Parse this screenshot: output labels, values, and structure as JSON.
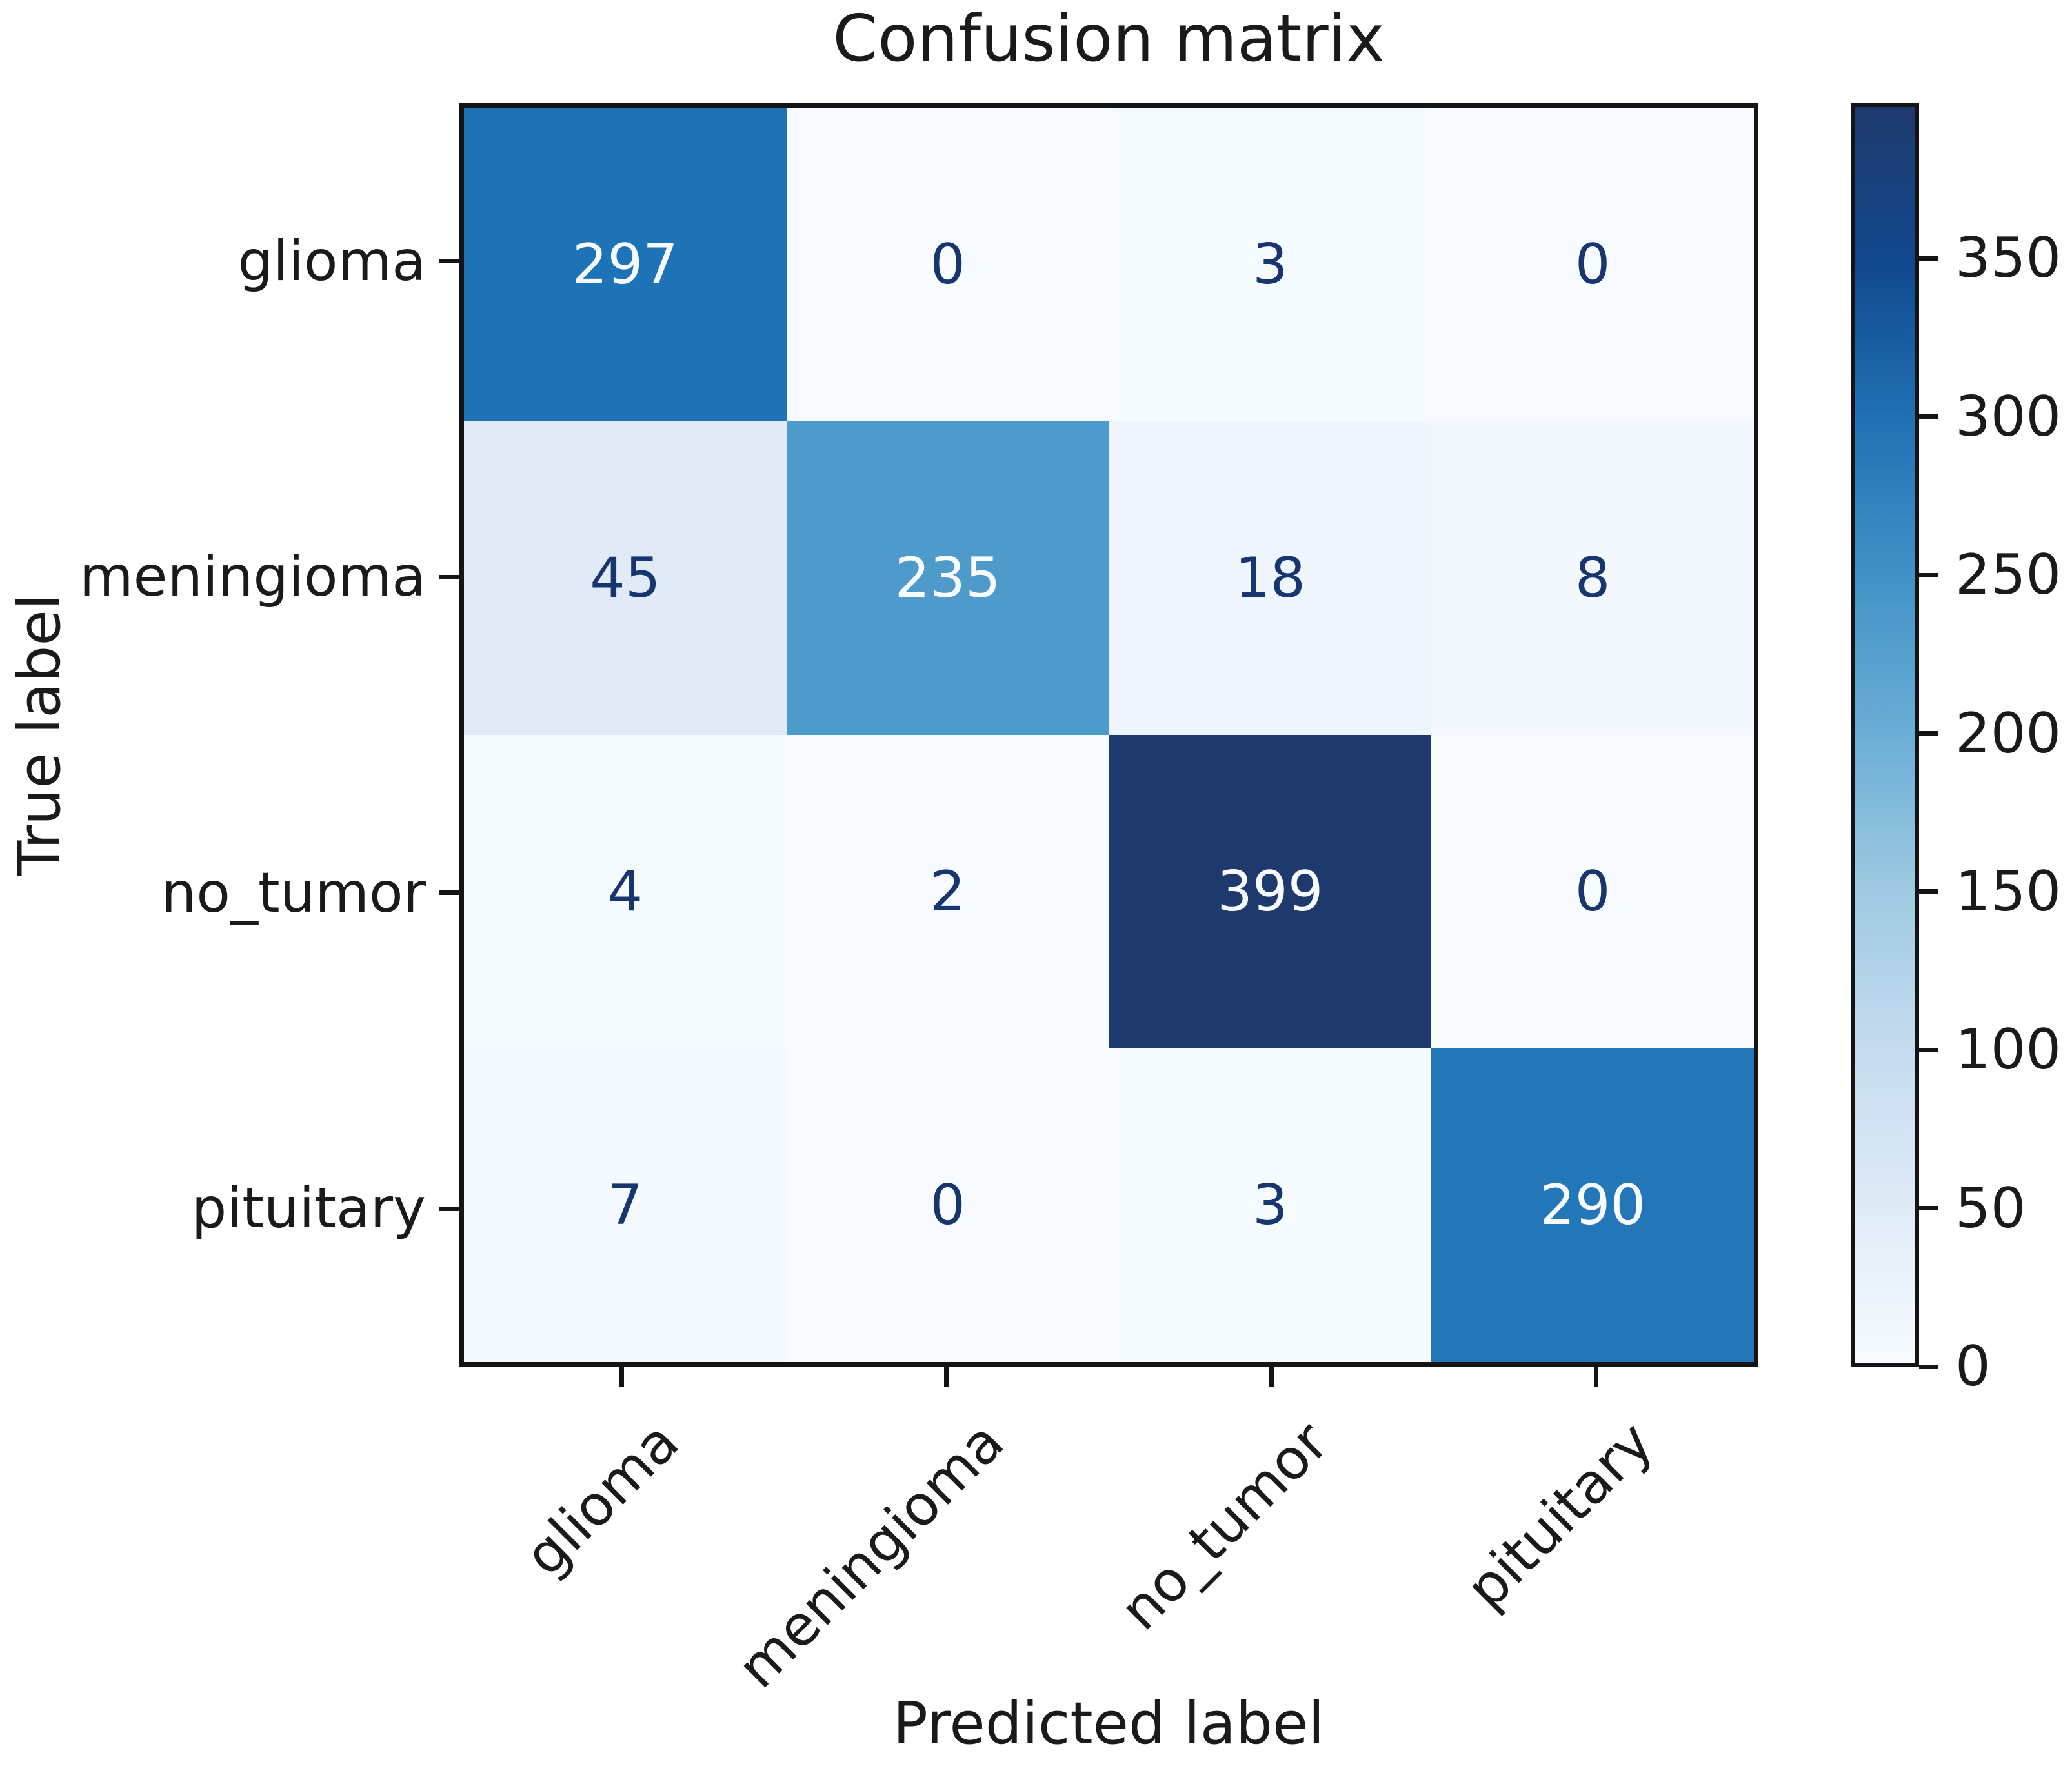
{
  "title": "Confusion matrix",
  "xlabel": "Predicted label",
  "ylabel": "True label",
  "chart_data": {
    "type": "heatmap",
    "title": "Confusion matrix",
    "xlabel": "Predicted label",
    "ylabel": "True label",
    "categories": [
      "glioma",
      "meningioma",
      "no_tumor",
      "pituitary"
    ],
    "x_categories": [
      "glioma",
      "meningioma",
      "no_tumor",
      "pituitary"
    ],
    "y_categories": [
      "glioma",
      "meningioma",
      "no_tumor",
      "pituitary"
    ],
    "matrix": [
      [
        297,
        0,
        3,
        0
      ],
      [
        45,
        235,
        18,
        8
      ],
      [
        4,
        2,
        399,
        0
      ],
      [
        7,
        0,
        3,
        290
      ]
    ],
    "vmin": 0,
    "vmax": 399,
    "colormap": "Blues",
    "legend_position": "right-colorbar",
    "grid": false,
    "x_tick_rotation_deg": 45,
    "colorbar": {
      "ticks": [
        0,
        50,
        100,
        150,
        200,
        250,
        300,
        350
      ]
    },
    "cell_colors": [
      [
        "#1e73b7",
        "#f7fbff",
        "#f5fafe",
        "#f7fbff"
      ],
      [
        "#e0ebf7",
        "#4e9acb",
        "#eef5fc",
        "#f3f8fd"
      ],
      [
        "#f5fafe",
        "#f6fafe",
        "#1e3a6d",
        "#f7fbff"
      ],
      [
        "#f4f9fe",
        "#f7fbff",
        "#f5fafe",
        "#2376b8"
      ]
    ],
    "cell_text_colors": [
      [
        "#f7fbff",
        "#17366f",
        "#17366f",
        "#17366f"
      ],
      [
        "#17366f",
        "#f7fbff",
        "#17366f",
        "#17366f"
      ],
      [
        "#17366f",
        "#17366f",
        "#f7fbff",
        "#17366f"
      ],
      [
        "#17366f",
        "#17366f",
        "#17366f",
        "#f7fbff"
      ]
    ],
    "colormap_stops": [
      {
        "pos": 0.0,
        "color": "#f7fbff"
      },
      {
        "pos": 0.125,
        "color": "#deebf7"
      },
      {
        "pos": 0.25,
        "color": "#c6dbef"
      },
      {
        "pos": 0.375,
        "color": "#9ecae1"
      },
      {
        "pos": 0.5,
        "color": "#6baed6"
      },
      {
        "pos": 0.625,
        "color": "#4292c6"
      },
      {
        "pos": 0.75,
        "color": "#2171b5"
      },
      {
        "pos": 0.875,
        "color": "#11498e"
      },
      {
        "pos": 1.0,
        "color": "#1e3a6d"
      }
    ]
  },
  "colors": {
    "background": "#ffffff",
    "spine": "#141414",
    "text": "#1a1a1a",
    "cell_text_dark": "#17366f",
    "cell_text_light": "#f7fbff"
  }
}
